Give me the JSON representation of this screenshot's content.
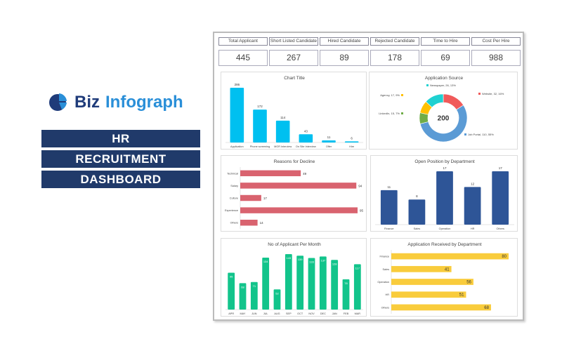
{
  "brand": {
    "name_part1": "Biz",
    "name_part2": "Infograph"
  },
  "title_lines": [
    "HR",
    "RECRUITMENT",
    "DASHBOARD"
  ],
  "kpis": [
    {
      "label": "Total Applicant",
      "value": "445"
    },
    {
      "label": "Short Listed Candidate",
      "value": "267"
    },
    {
      "label": "Hired Candidate",
      "value": "89"
    },
    {
      "label": "Rejected Candidate",
      "value": "178"
    },
    {
      "label": "Time to Hire",
      "value": "69"
    },
    {
      "label": "Cost Per Hire",
      "value": "988"
    }
  ],
  "chart_data": [
    {
      "id": "funnel",
      "type": "bar",
      "title": "Chart Title",
      "categories": [
        "Application",
        "Phone screening",
        "MGR Interview",
        "On Site Interview",
        "Offer",
        "Hire"
      ],
      "values": [
        286,
        172,
        114,
        43,
        11,
        6
      ],
      "color": "#00c0f0"
    },
    {
      "id": "source",
      "type": "pie",
      "donut": true,
      "title": "Application Source",
      "center_label": "200",
      "slices": [
        {
          "name": "Website",
          "value": 32,
          "pct": "16%",
          "color": "#f05a5a"
        },
        {
          "name": "Job Portal",
          "value": 110,
          "pct": "55%",
          "color": "#5b9bd5"
        },
        {
          "name": "LinkedIn",
          "value": 15,
          "pct": "7%",
          "color": "#70ad47"
        },
        {
          "name": "Agency",
          "value": 17,
          "pct": "9%",
          "color": "#ffc000"
        },
        {
          "name": "Newspaper",
          "value": 26,
          "pct": "13%",
          "color": "#1fd1d1"
        }
      ]
    },
    {
      "id": "decline",
      "type": "hbar",
      "title": "Reasons for Decline",
      "categories": [
        "Technical",
        "Salary",
        "Culture",
        "Experience",
        "Others"
      ],
      "values": [
        49,
        94,
        17,
        95,
        14
      ],
      "color": "#d9636f",
      "label_inside": false
    },
    {
      "id": "open",
      "type": "bar",
      "title": "Open Position by Department",
      "categories": [
        "Finance",
        "Sales",
        "Operation",
        "HR",
        "Others"
      ],
      "values": [
        11,
        8,
        17,
        12,
        17
      ],
      "color": "#2e5597"
    },
    {
      "id": "monthly",
      "type": "bar",
      "title": "No of Applicant Per Month",
      "categories": [
        "APR",
        "MAY",
        "JUN",
        "JUL",
        "AUG",
        "SEP",
        "OCT",
        "NOV",
        "DEC",
        "JAN",
        "FEB",
        "MAR"
      ],
      "values": [
        95,
        68,
        71,
        134,
        52,
        143,
        139,
        133,
        137,
        128,
        78,
        117
      ],
      "color": "#12c48b",
      "label_inside": true
    },
    {
      "id": "received",
      "type": "hbar",
      "title": "Application Received by Department",
      "categories": [
        "Finance",
        "Sales",
        "Operation",
        "HR",
        "Others"
      ],
      "values": [
        80,
        41,
        56,
        51,
        68
      ],
      "color": "#f9cc3c",
      "label_inside": true
    }
  ]
}
